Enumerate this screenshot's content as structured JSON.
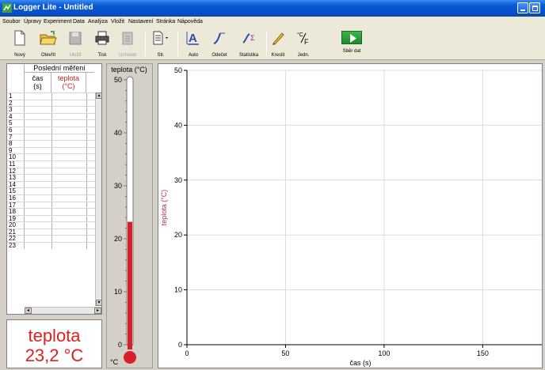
{
  "window": {
    "title": "Logger Lite - Untitled"
  },
  "menu": [
    "Soubor",
    "Úpravy",
    "Experiment",
    "Data",
    "Analýza",
    "Vložit",
    "Nastavení",
    "Stránka",
    "Nápověda"
  ],
  "toolbar": {
    "new": "Nový",
    "open": "Otevřít",
    "save": "Uložit",
    "print": "Tisk",
    "store": "Uchovat",
    "page": "Str.",
    "auto": "Auto",
    "examine": "Odečet",
    "stats": "Statistika",
    "draw": "Kreslit",
    "units": "Jedn.",
    "collect": "Sběr dat"
  },
  "table": {
    "group_header": "Poslední měření",
    "col_time": [
      "čas",
      "(s)"
    ],
    "col_temp": [
      "teplota",
      "(°C)"
    ],
    "row_numbers": [
      "1",
      "2",
      "3",
      "4",
      "5",
      "6",
      "7",
      "8",
      "9",
      "10",
      "11",
      "12",
      "13",
      "14",
      "15",
      "16",
      "17",
      "18",
      "19",
      "20",
      "21",
      "22",
      "23"
    ]
  },
  "meter": {
    "label": "teplota",
    "value": "23,2 °C"
  },
  "thermometer": {
    "title": "teplota (°C)",
    "ticks": [
      {
        "v": 50,
        "t": "50"
      },
      {
        "v": 40,
        "t": "40"
      },
      {
        "v": 30,
        "t": "30"
      },
      {
        "v": 20,
        "t": "20"
      },
      {
        "v": 10,
        "t": "10"
      },
      {
        "v": 0,
        "t": "0"
      }
    ],
    "unit_label": "°C",
    "level": 23.2,
    "range": [
      0,
      50
    ],
    "fill_color": "#d81e2a"
  },
  "graph": {
    "ylabel": "teplota (°C)",
    "xlabel": "čas (s)",
    "yticks": [
      {
        "v": 0,
        "t": "0"
      },
      {
        "v": 10,
        "t": "10"
      },
      {
        "v": 20,
        "t": "20"
      },
      {
        "v": 30,
        "t": "30"
      },
      {
        "v": 40,
        "t": "40"
      },
      {
        "v": 50,
        "t": "50"
      }
    ],
    "xticks": [
      {
        "v": 0,
        "t": "0"
      },
      {
        "v": 50,
        "t": "50"
      },
      {
        "v": 100,
        "t": "100"
      },
      {
        "v": 150,
        "t": "150"
      }
    ],
    "xlim": [
      0,
      180
    ],
    "ylim": [
      0,
      50
    ],
    "ylabel_color": "#c0304a"
  }
}
